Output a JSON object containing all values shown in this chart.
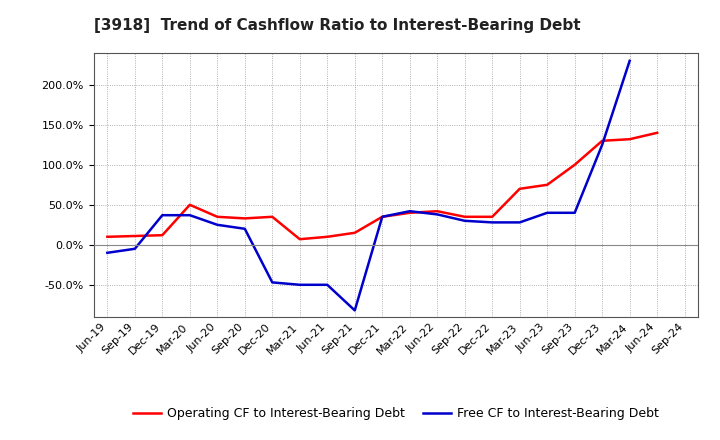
{
  "title": "[3918]  Trend of Cashflow Ratio to Interest-Bearing Debt",
  "x_labels": [
    "Jun-19",
    "Sep-19",
    "Dec-19",
    "Mar-20",
    "Jun-20",
    "Sep-20",
    "Dec-20",
    "Mar-21",
    "Jun-21",
    "Sep-21",
    "Dec-21",
    "Mar-22",
    "Jun-22",
    "Sep-22",
    "Dec-22",
    "Mar-23",
    "Jun-23",
    "Sep-23",
    "Dec-23",
    "Mar-24",
    "Jun-24",
    "Sep-24"
  ],
  "operating_cf": [
    10.0,
    11.0,
    12.0,
    50.0,
    35.0,
    33.0,
    35.0,
    7.0,
    10.0,
    15.0,
    35.0,
    40.0,
    42.0,
    35.0,
    35.0,
    70.0,
    75.0,
    100.0,
    130.0,
    132.0,
    140.0,
    null
  ],
  "free_cf": [
    -10.0,
    -5.0,
    37.0,
    37.0,
    25.0,
    20.0,
    -47.0,
    -50.0,
    -50.0,
    -82.0,
    35.0,
    42.0,
    38.0,
    30.0,
    28.0,
    28.0,
    40.0,
    40.0,
    125.0,
    230.0,
    null,
    null
  ],
  "ylim": [
    -90,
    240
  ],
  "yticks": [
    -50.0,
    0.0,
    50.0,
    100.0,
    150.0,
    200.0
  ],
  "operating_color": "#ff0000",
  "free_color": "#0000cc",
  "background_color": "#ffffff",
  "plot_bg_color": "#ffffff",
  "grid_color": "#999999",
  "legend_op": "Operating CF to Interest-Bearing Debt",
  "legend_free": "Free CF to Interest-Bearing Debt",
  "title_fontsize": 11,
  "tick_fontsize": 8,
  "legend_fontsize": 9
}
